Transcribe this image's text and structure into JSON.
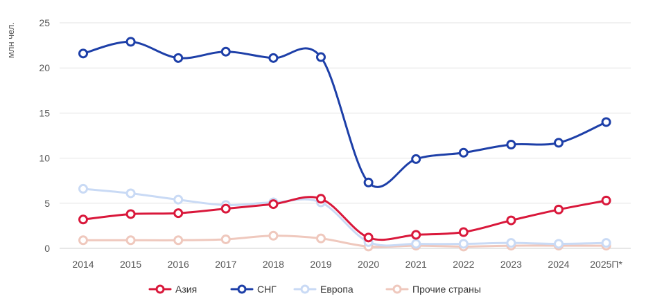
{
  "chart_data": {
    "type": "line",
    "title": "",
    "xlabel": "",
    "ylabel": "млн чел.",
    "categories": [
      "2014",
      "2015",
      "2016",
      "2017",
      "2018",
      "2019",
      "2020",
      "2021",
      "2022",
      "2023",
      "2024",
      "2025П*"
    ],
    "ylim": [
      0,
      25
    ],
    "yticks": [
      0,
      5,
      10,
      15,
      20,
      25
    ],
    "grid": true,
    "legend_position": "bottom",
    "series": [
      {
        "name": "Азия",
        "color": "#d9183b",
        "values": [
          3.2,
          3.8,
          3.9,
          4.4,
          4.9,
          5.5,
          1.2,
          1.5,
          1.8,
          3.1,
          4.3,
          5.3
        ]
      },
      {
        "name": "СНГ",
        "color": "#1d3fa8",
        "values": [
          21.6,
          22.9,
          21.1,
          21.8,
          21.1,
          21.2,
          7.3,
          9.9,
          10.6,
          11.5,
          11.7,
          14.0
        ]
      },
      {
        "name": "Европа",
        "color": "#c9daf5",
        "values": [
          6.6,
          6.1,
          5.4,
          4.8,
          5.1,
          5.1,
          0.7,
          0.5,
          0.5,
          0.6,
          0.5,
          0.6
        ]
      },
      {
        "name": "Прочие страны",
        "color": "#efc8bd",
        "values": [
          0.9,
          0.9,
          0.9,
          1.0,
          1.4,
          1.1,
          0.2,
          0.3,
          0.2,
          0.3,
          0.3,
          0.3
        ]
      }
    ]
  }
}
